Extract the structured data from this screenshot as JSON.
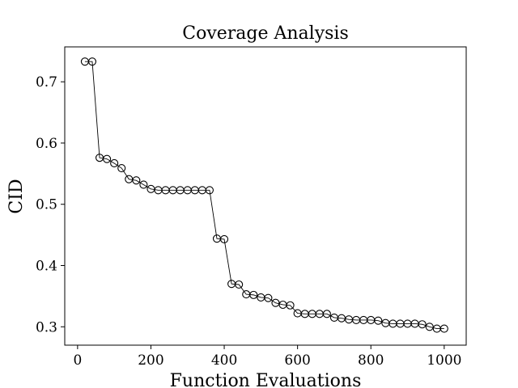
{
  "chart_data": {
    "type": "line",
    "title": "Coverage Analysis",
    "xlabel": "Function Evaluations",
    "ylabel": "CID",
    "xlim": [
      -35,
      1060
    ],
    "ylim": [
      0.27,
      0.757
    ],
    "xticks": [
      0,
      200,
      400,
      600,
      800,
      1000
    ],
    "xtick_labels": [
      "0",
      "200",
      "400",
      "600",
      "800",
      "1000"
    ],
    "yticks": [
      0.3,
      0.4,
      0.5,
      0.6,
      0.7
    ],
    "ytick_labels": [
      "0.3",
      "0.4",
      "0.5",
      "0.6",
      "0.7"
    ],
    "grid": false,
    "series": [
      {
        "marker": "open-circle",
        "color": "#000000",
        "x": [
          20,
          40,
          60,
          80,
          100,
          120,
          140,
          160,
          180,
          200,
          220,
          240,
          260,
          280,
          300,
          320,
          340,
          360,
          380,
          400,
          420,
          440,
          460,
          480,
          500,
          520,
          540,
          560,
          580,
          600,
          620,
          640,
          660,
          680,
          700,
          720,
          740,
          760,
          780,
          800,
          820,
          840,
          860,
          880,
          900,
          920,
          940,
          960,
          980,
          1000
        ],
        "y": [
          0.733,
          0.733,
          0.576,
          0.574,
          0.567,
          0.559,
          0.541,
          0.539,
          0.532,
          0.525,
          0.523,
          0.523,
          0.523,
          0.523,
          0.523,
          0.523,
          0.523,
          0.523,
          0.444,
          0.443,
          0.37,
          0.369,
          0.353,
          0.352,
          0.348,
          0.347,
          0.339,
          0.336,
          0.335,
          0.322,
          0.321,
          0.321,
          0.321,
          0.321,
          0.315,
          0.314,
          0.312,
          0.311,
          0.311,
          0.311,
          0.31,
          0.306,
          0.305,
          0.305,
          0.305,
          0.305,
          0.304,
          0.3,
          0.297,
          0.297
        ]
      }
    ]
  }
}
